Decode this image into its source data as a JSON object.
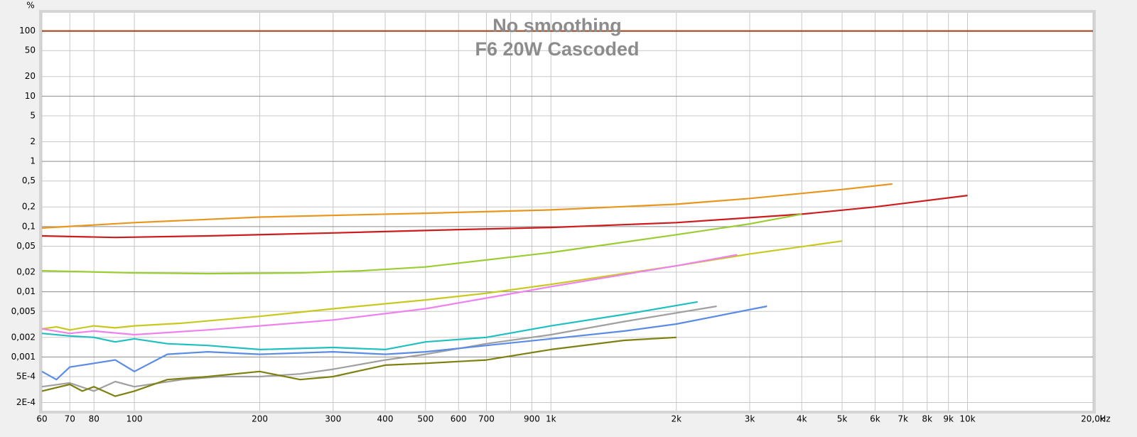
{
  "chart_data": {
    "type": "line",
    "title": "No smoothing",
    "subtitle": "F6 20W Cascoded",
    "y_label": "%",
    "x_label": "Hz",
    "xscale": "log",
    "yscale": "log",
    "grid": true,
    "xlim": [
      60,
      20000
    ],
    "ylim": [
      0.00015,
      190
    ],
    "xticks": [
      60,
      70,
      80,
      100,
      200,
      300,
      400,
      500,
      600,
      700,
      {
        "value": 800,
        "label": null
      },
      900,
      {
        "value": 1000,
        "label": "1k"
      },
      {
        "value": 2000,
        "label": "2k"
      },
      {
        "value": 3000,
        "label": "3k"
      },
      {
        "value": 4000,
        "label": "4k"
      },
      {
        "value": 5000,
        "label": "5k"
      },
      {
        "value": 6000,
        "label": "6k"
      },
      {
        "value": 7000,
        "label": "7k"
      },
      {
        "value": 8000,
        "label": "8k"
      },
      {
        "value": 9000,
        "label": "9k"
      },
      {
        "value": 10000,
        "label": "10k"
      },
      {
        "value": 20000,
        "label": "20,0k"
      }
    ],
    "yticks": [
      100,
      50,
      20,
      10,
      5,
      2,
      1,
      {
        "value": 0.5,
        "label": "0,5"
      },
      {
        "value": 0.2,
        "label": "0,2"
      },
      {
        "value": 0.1,
        "label": "0,1"
      },
      {
        "value": 0.05,
        "label": "0,05"
      },
      {
        "value": 0.02,
        "label": "0,02"
      },
      {
        "value": 0.01,
        "label": "0,01"
      },
      {
        "value": 0.005,
        "label": "0,005"
      },
      {
        "value": 0.002,
        "label": "0,002"
      },
      {
        "value": 0.001,
        "label": "0,001"
      },
      {
        "value": 0.0005,
        "label": "5E-4"
      },
      {
        "value": 0.0002,
        "label": "2E-4"
      }
    ],
    "series": [
      {
        "color": "#a0522d",
        "x": [
          60,
          20000
        ],
        "values": [
          100,
          100
        ]
      },
      {
        "color": "#e8961e",
        "x": [
          60,
          100,
          200,
          500,
          1000,
          2000,
          3000,
          5000,
          6600
        ],
        "values": [
          0.095,
          0.115,
          0.14,
          0.16,
          0.18,
          0.22,
          0.27,
          0.37,
          0.45
        ]
      },
      {
        "color": "#cc1c1c",
        "x": [
          60,
          90,
          150,
          300,
          600,
          1000,
          2000,
          4000,
          6000,
          10000
        ],
        "values": [
          0.072,
          0.068,
          0.072,
          0.08,
          0.09,
          0.097,
          0.115,
          0.155,
          0.2,
          0.3
        ]
      },
      {
        "color": "#9acd32",
        "x": [
          60,
          100,
          150,
          250,
          350,
          500,
          1000,
          2000,
          3000,
          4000
        ],
        "values": [
          0.021,
          0.0195,
          0.019,
          0.0195,
          0.021,
          0.024,
          0.04,
          0.075,
          0.11,
          0.155
        ]
      },
      {
        "color": "#c8c81e",
        "x": [
          60,
          65,
          70,
          80,
          90,
          100,
          130,
          200,
          300,
          500,
          700,
          1000,
          2000,
          3000,
          5000
        ],
        "values": [
          0.0027,
          0.0029,
          0.0026,
          0.003,
          0.0028,
          0.003,
          0.0033,
          0.0042,
          0.0055,
          0.0075,
          0.0095,
          0.013,
          0.025,
          0.038,
          0.06
        ]
      },
      {
        "color": "#ee82ee",
        "x": [
          60,
          70,
          80,
          100,
          150,
          200,
          300,
          500,
          700,
          1000,
          2000,
          2800
        ],
        "values": [
          0.0027,
          0.0023,
          0.0025,
          0.0022,
          0.0026,
          0.003,
          0.0037,
          0.0055,
          0.008,
          0.012,
          0.025,
          0.037
        ]
      },
      {
        "color": "#20c0c0",
        "x": [
          60,
          70,
          80,
          90,
          100,
          120,
          150,
          200,
          300,
          400,
          500,
          700,
          1000,
          1500,
          2250
        ],
        "values": [
          0.0023,
          0.0021,
          0.002,
          0.0017,
          0.0019,
          0.0016,
          0.0015,
          0.0013,
          0.0014,
          0.0013,
          0.0017,
          0.002,
          0.003,
          0.0045,
          0.007
        ]
      },
      {
        "color": "#a0a0a0",
        "x": [
          60,
          70,
          80,
          90,
          100,
          130,
          160,
          200,
          250,
          300,
          400,
          500,
          700,
          1000,
          1500,
          2500
        ],
        "values": [
          0.00035,
          0.0004,
          0.0003,
          0.00042,
          0.00035,
          0.00045,
          0.0005,
          0.0005,
          0.00055,
          0.00065,
          0.0009,
          0.0011,
          0.0016,
          0.0022,
          0.0035,
          0.006
        ]
      },
      {
        "color": "#5a8ce6",
        "x": [
          60,
          65,
          70,
          80,
          90,
          100,
          120,
          150,
          200,
          300,
          400,
          500,
          700,
          1000,
          1500,
          2000,
          3300
        ],
        "values": [
          0.0006,
          0.00045,
          0.0007,
          0.0008,
          0.0009,
          0.0006,
          0.0011,
          0.0012,
          0.0011,
          0.0012,
          0.0011,
          0.0012,
          0.0015,
          0.0019,
          0.0025,
          0.0032,
          0.006
        ]
      },
      {
        "color": "#808010",
        "x": [
          60,
          70,
          75,
          80,
          90,
          100,
          120,
          150,
          200,
          250,
          300,
          400,
          500,
          700,
          1000,
          1500,
          2000
        ],
        "values": [
          0.0003,
          0.00038,
          0.0003,
          0.00035,
          0.00025,
          0.0003,
          0.00045,
          0.0005,
          0.0006,
          0.00045,
          0.0005,
          0.00075,
          0.0008,
          0.0009,
          0.0013,
          0.0018,
          0.002
        ]
      }
    ]
  }
}
